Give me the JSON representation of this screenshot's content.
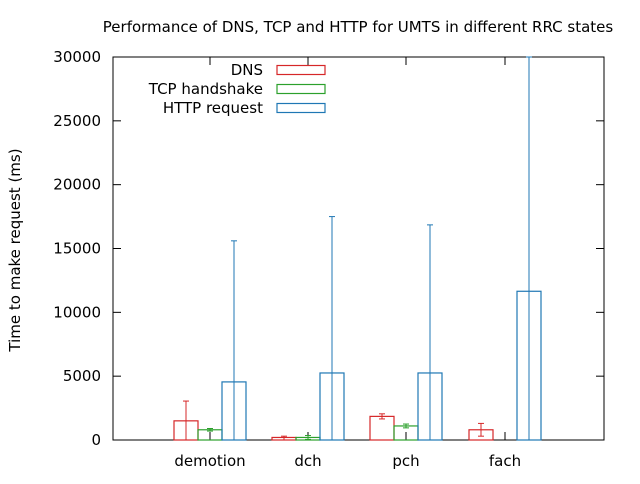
{
  "chart_data": {
    "type": "bar",
    "title": "Performance of DNS, TCP and HTTP for UMTS in different RRC states",
    "xlabel": "",
    "ylabel": "Time to make request (ms)",
    "ylim": [
      0,
      30000
    ],
    "yticks": [
      0,
      5000,
      10000,
      15000,
      20000,
      25000,
      30000
    ],
    "categories": [
      "demotion",
      "dch",
      "pch",
      "fach"
    ],
    "legend_position": "top-left",
    "grid": false,
    "error_bars": true,
    "series": [
      {
        "name": "DNS",
        "color": "#d62728",
        "values": [
          1500,
          200,
          1850,
          800
        ],
        "error_low": [
          0,
          0,
          1650,
          300
        ],
        "error_high": [
          3050,
          300,
          2050,
          1300
        ]
      },
      {
        "name": "TCP handshake",
        "color": "#2ca02c",
        "values": [
          800,
          200,
          1100,
          0
        ],
        "error_low": [
          700,
          50,
          950,
          0
        ],
        "error_high": [
          900,
          350,
          1250,
          0
        ]
      },
      {
        "name": "HTTP request",
        "color": "#1f77b4",
        "values": [
          4550,
          5250,
          5250,
          11650
        ],
        "error_low": [
          0,
          0,
          0,
          0
        ],
        "error_high": [
          15600,
          17500,
          16850,
          30000
        ]
      }
    ]
  }
}
